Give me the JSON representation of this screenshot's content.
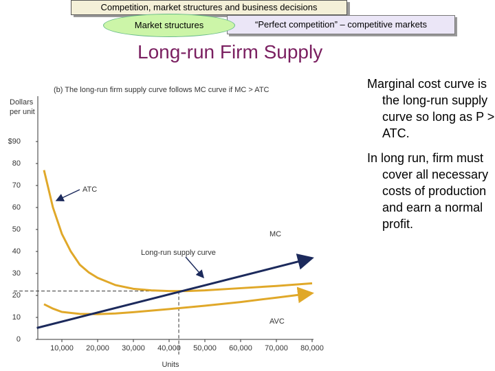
{
  "header": {
    "course": "Competition, market structures and business decisions",
    "section": "Market structures",
    "topic": "“Perfect competition” – competitive markets"
  },
  "slide_title": "Long-run Firm Supply",
  "bullets": [
    "Marginal cost curve is the long-run supply curve so long as P > ATC.",
    "In long run, firm must cover all necessary costs of production and earn a normal profit."
  ],
  "chart_data": {
    "type": "line",
    "title": "(b) The long-run firm supply curve follows MC curve if MC > ATC",
    "ylabel": "Dollars per unit",
    "xlabel": "Units",
    "annotation": "Long-run supply curve",
    "xlim": [
      3000,
      80000
    ],
    "ylim": [
      0,
      90
    ],
    "xticks": [
      {
        "value": 10000,
        "label": "10,000"
      },
      {
        "value": 20000,
        "label": "20,000"
      },
      {
        "value": 30000,
        "label": "30,000"
      },
      {
        "value": 40000,
        "label": "40,000"
      },
      {
        "value": 50000,
        "label": "50,000"
      },
      {
        "value": 60000,
        "label": "60,000"
      },
      {
        "value": 70000,
        "label": "70,000"
      },
      {
        "value": 80000,
        "label": "80,000"
      }
    ],
    "yticks": [
      0,
      10,
      20,
      30,
      40,
      50,
      60,
      70,
      80,
      {
        "value": 90,
        "label": "$90"
      }
    ],
    "reference_point": {
      "x": 42700,
      "y": 22
    },
    "series": [
      {
        "name": "ATC",
        "color": "#e0a829",
        "x": [
          5000,
          7500,
          10000,
          12500,
          15000,
          17500,
          20000,
          25000,
          30000,
          35000,
          40000,
          45000,
          50000,
          60000,
          70000,
          80000
        ],
        "values": [
          77,
          60,
          48,
          40,
          34,
          30.5,
          28,
          24.7,
          23,
          22.3,
          22,
          22,
          22.3,
          23.3,
          24.3,
          25.5
        ]
      },
      {
        "name": "AVC",
        "color": "#e0a829",
        "x": [
          5000,
          7500,
          10000,
          15000,
          20000,
          25000,
          30000,
          40000,
          50000,
          60000,
          70000,
          80000
        ],
        "values": [
          16,
          14,
          12.5,
          11.6,
          11.5,
          11.8,
          12.4,
          13.8,
          15.3,
          17,
          19,
          21
        ]
      },
      {
        "name": "MC",
        "color": "#1c2a5c",
        "x": [
          3000,
          80000
        ],
        "values": [
          5.2,
          37
        ]
      }
    ]
  }
}
